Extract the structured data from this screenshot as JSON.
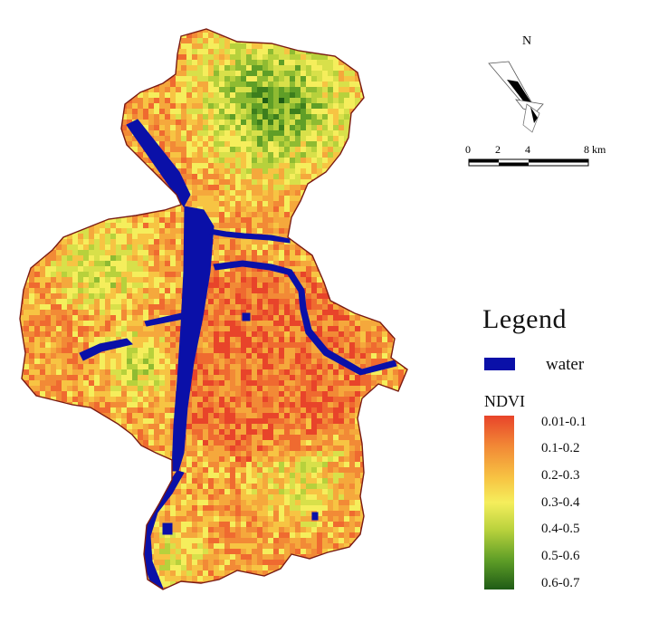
{
  "north": {
    "label": "N"
  },
  "scale": {
    "ticks": [
      "0",
      "2",
      "4",
      "8 km"
    ]
  },
  "legend": {
    "title": "Legend",
    "water_label": "water",
    "ndvi_title": "NDVI",
    "classes": [
      "0.01-0.1",
      "0.1-0.2",
      "0.2-0.3",
      "0.3-0.4",
      "0.4-0.5",
      "0.5-0.6",
      "0.6-0.7"
    ]
  },
  "colors": {
    "water": "#0a10a8",
    "boundary": "#7a1a12",
    "ndvi_low": "#e8442a",
    "ndvi_mid": "#f5ee5c",
    "ndvi_high": "#1f5c16"
  }
}
